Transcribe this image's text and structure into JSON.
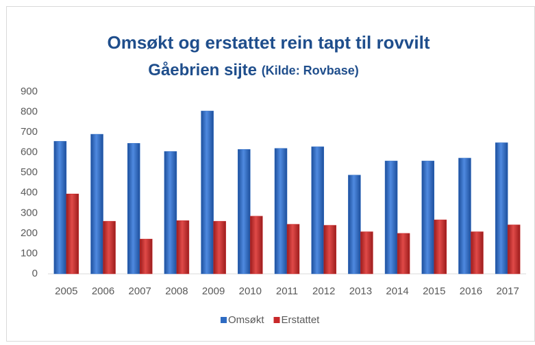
{
  "chart_data": {
    "type": "bar",
    "title": "Omsøkt og erstattet rein tapt til rovvilt",
    "subtitle": "Gåebrien sijte",
    "source": "(Kilde: Rovbase)",
    "categories": [
      "2005",
      "2006",
      "2007",
      "2008",
      "2009",
      "2010",
      "2011",
      "2012",
      "2013",
      "2014",
      "2015",
      "2016",
      "2017"
    ],
    "series": [
      {
        "name": "Omsøkt",
        "color": "#2e6bc2",
        "values": [
          655,
          690,
          645,
          605,
          805,
          615,
          620,
          628,
          488,
          558,
          558,
          572,
          648
        ]
      },
      {
        "name": "Erstattet",
        "color": "#c8282a",
        "values": [
          395,
          260,
          172,
          263,
          260,
          285,
          245,
          240,
          208,
          200,
          267,
          208,
          242
        ]
      }
    ],
    "ylim": [
      0,
      900
    ],
    "yticks": [
      0,
      100,
      200,
      300,
      400,
      500,
      600,
      700,
      800,
      900
    ],
    "grid": false,
    "legend": "bottom"
  }
}
